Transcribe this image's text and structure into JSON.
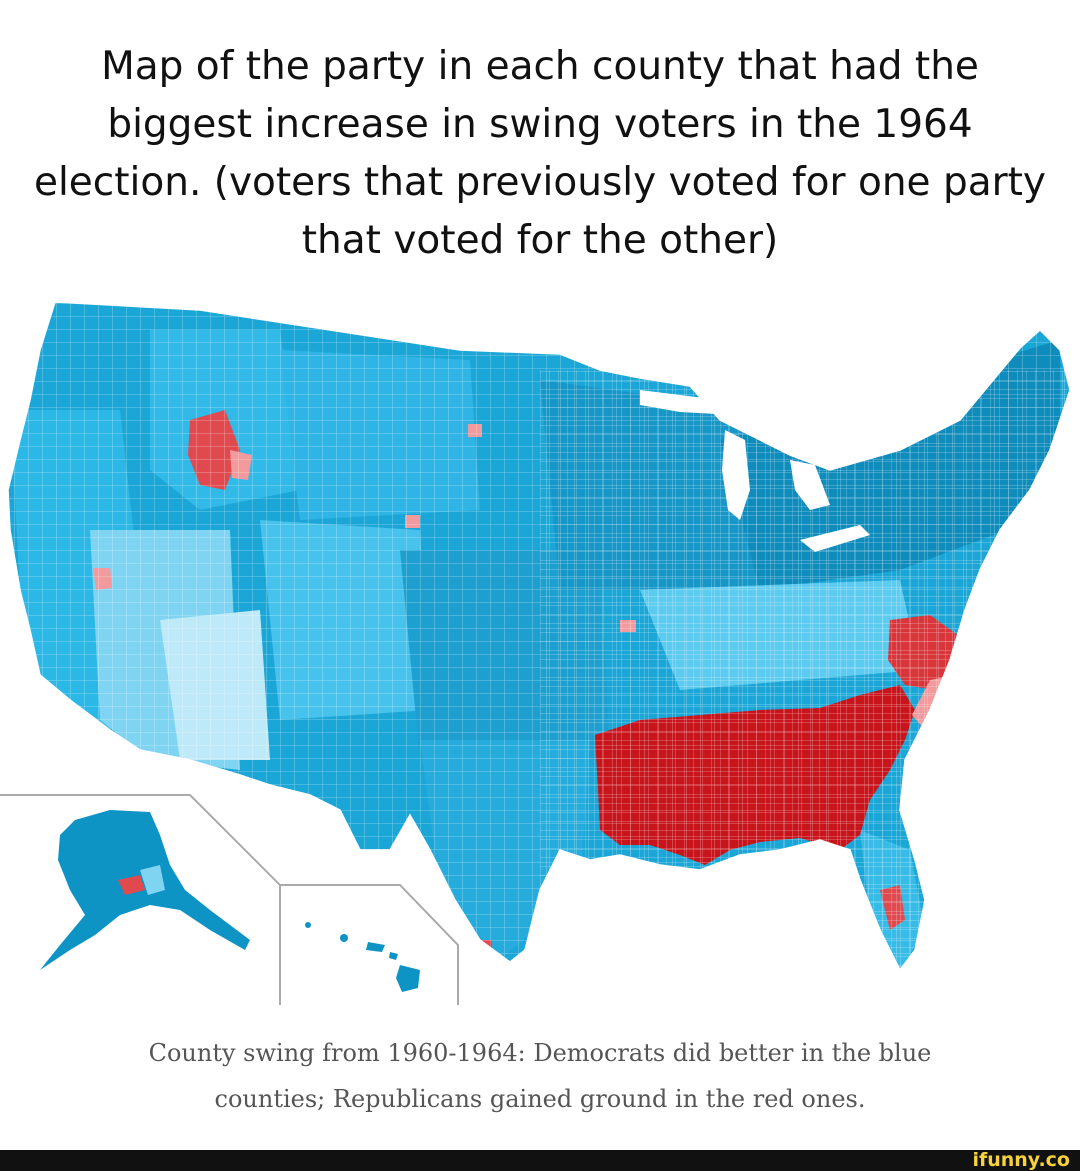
{
  "title": "Map of the party in each county that had the biggest increase in swing voters in the 1964 election. (voters that previously voted for one party that voted for the other)",
  "caption": "County swing from 1960-1964: Democrats did better in the blue counties; Republicans gained ground in the red ones.",
  "watermark": "ifunny.co",
  "colors": {
    "dem_dark": "#0a8fbf",
    "dem_mid": "#2cb3e3",
    "dem_light": "#7fd4f2",
    "dem_pale": "#bde9f8",
    "rep_dark": "#c8141b",
    "rep_mid": "#e04a4f",
    "rep_light": "#f29a9d",
    "border": "#ffffff",
    "inset_line": "#aaaaaa"
  }
}
